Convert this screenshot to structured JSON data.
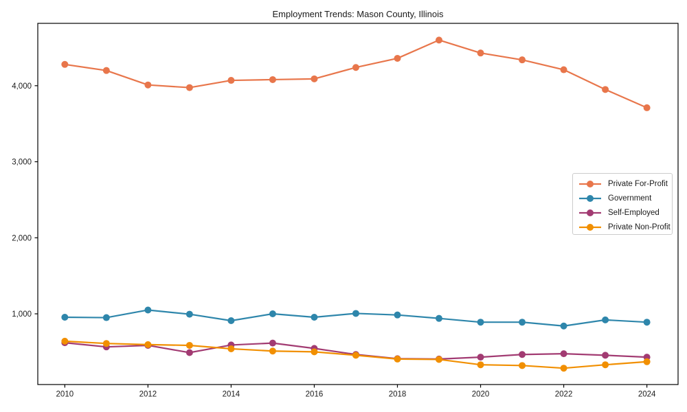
{
  "figure": {
    "background": "#ffffff",
    "text_color": "#1a1a1a",
    "spine_color": "#000000"
  },
  "chart_data": {
    "type": "line",
    "title": "Employment Trends: Mason County, Illinois",
    "xlabel": "",
    "ylabel": "",
    "x": [
      2010,
      2011,
      2012,
      2013,
      2014,
      2015,
      2016,
      2017,
      2018,
      2019,
      2020,
      2021,
      2022,
      2023,
      2024
    ],
    "series": [
      {
        "name": "Private For-Profit",
        "color": "#E8764B",
        "values": [
          4280,
          4200,
          4010,
          3975,
          4070,
          4080,
          4090,
          4240,
          4360,
          4600,
          4430,
          4340,
          4210,
          3950,
          3710
        ]
      },
      {
        "name": "Government",
        "color": "#2E86AB",
        "values": [
          955,
          950,
          1050,
          995,
          910,
          1000,
          955,
          1005,
          985,
          940,
          890,
          890,
          840,
          920,
          890
        ]
      },
      {
        "name": "Self-Employed",
        "color": "#A23B72",
        "values": [
          620,
          565,
          585,
          490,
          590,
          615,
          545,
          465,
          410,
          405,
          430,
          465,
          475,
          455,
          430
        ]
      },
      {
        "name": "Private Non-Profit",
        "color": "#F18F01",
        "values": [
          640,
          610,
          595,
          585,
          540,
          510,
          500,
          455,
          405,
          400,
          330,
          320,
          285,
          330,
          370
        ]
      }
    ],
    "xlim": [
      2009.35,
      2024.75
    ],
    "ylim": [
      70,
      4820
    ],
    "xticks": [
      2010,
      2012,
      2014,
      2016,
      2018,
      2020,
      2022,
      2024
    ],
    "yticks": [
      1000,
      2000,
      3000,
      4000
    ],
    "ytick_labels": [
      "1,000",
      "2,000",
      "3,000",
      "4,000"
    ],
    "grid": false,
    "legend_position": "center-right",
    "marker": "circle",
    "line_width": 2.2,
    "marker_radius": 5
  }
}
